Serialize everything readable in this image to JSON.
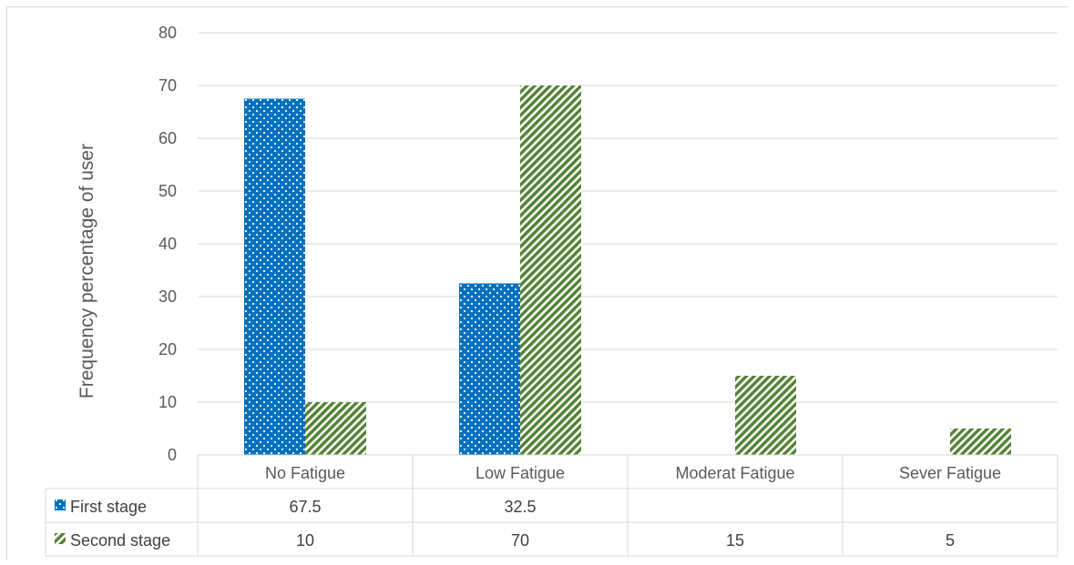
{
  "chart_data": {
    "type": "bar",
    "title": "",
    "xlabel": "",
    "ylabel": "Frequency percentage of user",
    "ylim": [
      0,
      80
    ],
    "yticks": [
      0,
      10,
      20,
      30,
      40,
      50,
      60,
      70,
      80
    ],
    "grid": true,
    "legend": "data-table",
    "categories": [
      "No Fatigue",
      "Low Fatigue",
      "Moderat Fatigue",
      "Sever Fatigue"
    ],
    "series": [
      {
        "name": "First stage",
        "values": [
          67.5,
          32.5,
          null,
          null
        ],
        "color": "#0070c0",
        "pattern": "dots"
      },
      {
        "name": "Second stage",
        "values": [
          10,
          70,
          15,
          5
        ],
        "color": "#548235",
        "pattern": "diagonal-stripes"
      }
    ],
    "table_cells": [
      [
        "67.5",
        "32.5",
        "",
        ""
      ],
      [
        "10",
        "70",
        "15",
        "5"
      ]
    ]
  }
}
